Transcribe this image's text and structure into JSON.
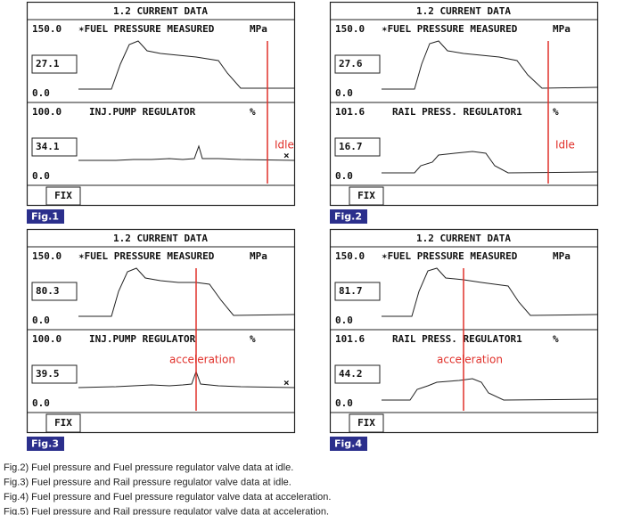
{
  "panels": [
    {
      "header": "1.2 CURRENT DATA",
      "top": {
        "max": "150.0",
        "label": "✶FUEL PRESSURE MEASURED",
        "unit": "MPa",
        "current": "27.1",
        "min": "0.0"
      },
      "bottom": {
        "max": "100.0",
        "label": "INJ.PUMP REGULATOR",
        "unit": "%",
        "current": "34.1",
        "min": "0.0",
        "marker": "×"
      },
      "annotation": "Idle",
      "fix": "FIX",
      "figure": "Fig.1"
    },
    {
      "header": "1.2 CURRENT DATA",
      "top": {
        "max": "150.0",
        "label": "✶FUEL PRESSURE MEASURED",
        "unit": "MPa",
        "current": "27.6",
        "min": "0.0"
      },
      "bottom": {
        "max": "101.6",
        "label": "RAIL PRESS. REGULATOR1",
        "unit": "%",
        "current": "16.7",
        "min": "0.0"
      },
      "annotation": "Idle",
      "fix": "FIX",
      "figure": "Fig.2"
    },
    {
      "header": "1.2 CURRENT DATA",
      "top": {
        "max": "150.0",
        "label": "✶FUEL PRESSURE MEASURED",
        "unit": "MPa",
        "current": "80.3",
        "min": "0.0"
      },
      "bottom": {
        "max": "100.0",
        "label": "INJ.PUMP REGULATOR",
        "unit": "%",
        "current": "39.5",
        "min": "0.0",
        "marker": "×"
      },
      "annotation": "acceleration",
      "fix": "FIX",
      "figure": "Fig.3"
    },
    {
      "header": "1.2 CURRENT DATA",
      "top": {
        "max": "150.0",
        "label": "✶FUEL PRESSURE MEASURED",
        "unit": "MPa",
        "current": "81.7",
        "min": "0.0"
      },
      "bottom": {
        "max": "101.6",
        "label": "RAIL PRESS. REGULATOR1",
        "unit": "%",
        "current": "44.2",
        "min": "0.0"
      },
      "annotation": "acceleration",
      "fix": "FIX",
      "figure": "Fig.4"
    }
  ],
  "captions": [
    "Fig.2) Fuel pressure and Fuel pressure regulator valve data at idle.",
    "Fig.3) Fuel pressure and Rail pressure regulator valve data at idle.",
    "Fig.4) Fuel pressure and Fuel pressure regulator valve data at acceleration.",
    "Fig.5) Fuel pressure and Rail pressure regulator valve data at acceleration."
  ]
}
